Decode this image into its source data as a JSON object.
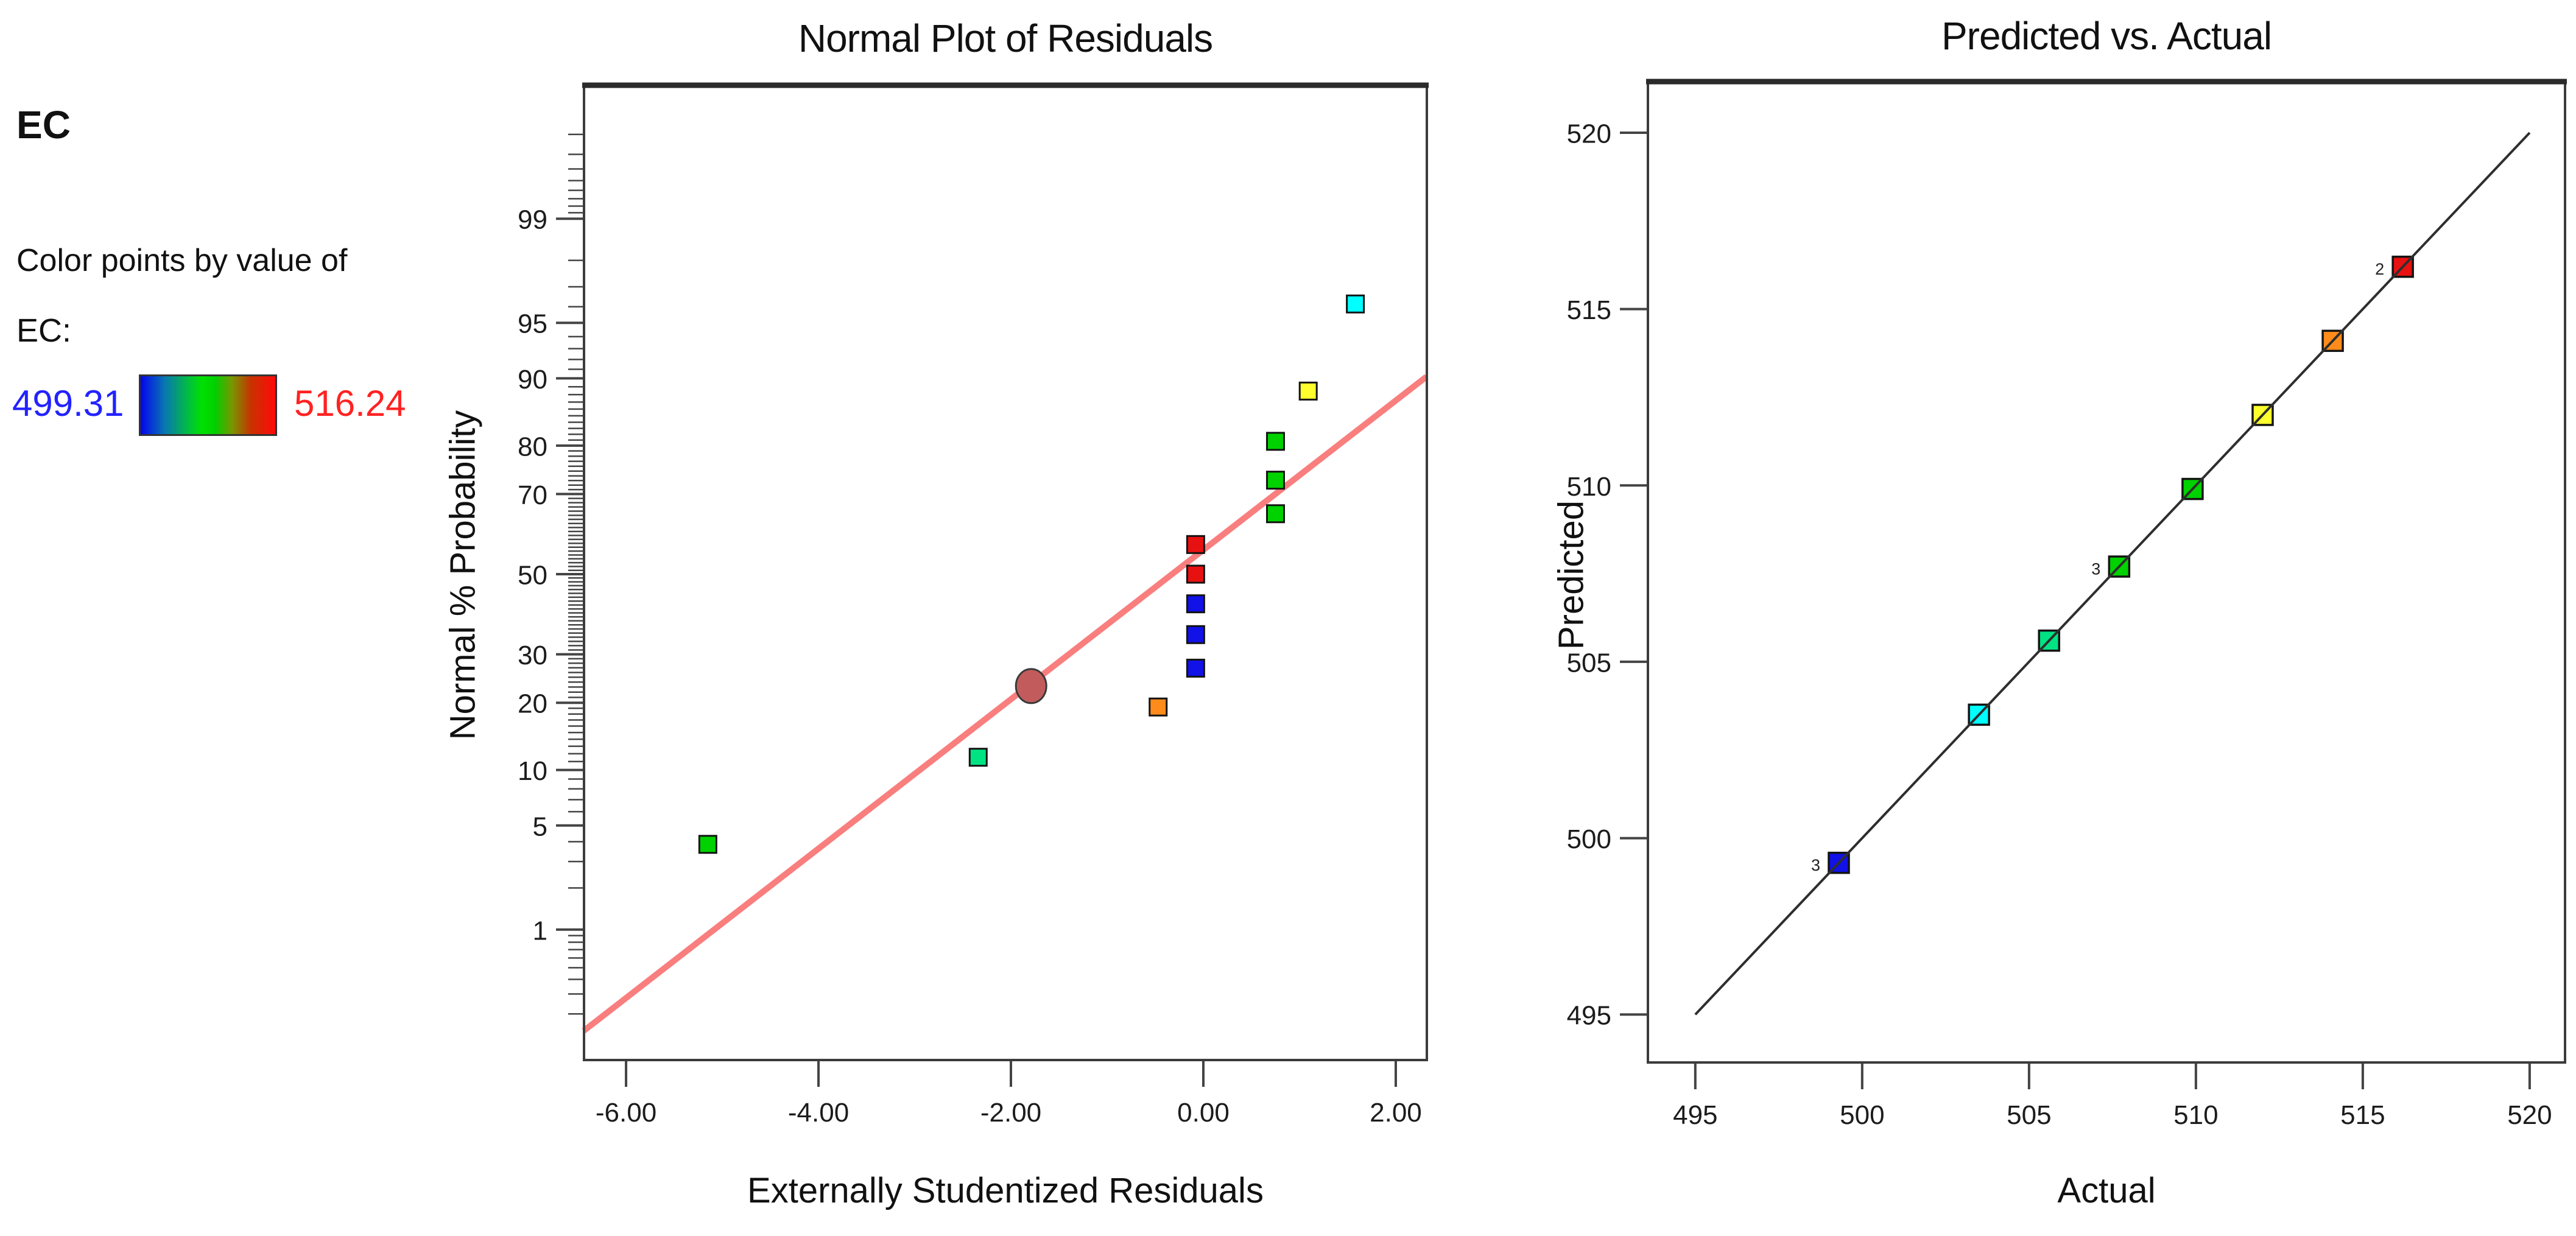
{
  "legend": {
    "title": "EC",
    "caption": "Color points by value of",
    "factor_label": "EC:",
    "min_value": "499.31",
    "max_value": "516.24",
    "min_color": "#2222ff",
    "max_color": "#ff2222",
    "gradient_stops": [
      "#0404f0 0%",
      "#0878b0 18%",
      "#00c830 38%",
      "#00e000 46%",
      "#00d000 55%",
      "#789600 68%",
      "#c83200 82%",
      "#ff0a0a 100%"
    ]
  },
  "chart_data": [
    {
      "type": "scatter",
      "title": "Normal Plot of Residuals",
      "xlabel": "Externally Studentized Residuals",
      "ylabel": "Normal % Probability",
      "y_scale": "normal-probability",
      "xlim": [
        -6.437,
        2.323
      ],
      "ylim_probit": [
        -3.18,
        3.2
      ],
      "x_ticks": [
        -6,
        -4,
        -2,
        0,
        2
      ],
      "x_tick_labels": [
        "-6.00",
        "-4.00",
        "-2.00",
        "0.00",
        "2.00"
      ],
      "y_major_ticks": [
        1,
        5,
        10,
        20,
        30,
        50,
        70,
        80,
        90,
        95,
        99
      ],
      "y_minor_tick_ranges": [
        [
          0.2,
          0.9,
          0.1
        ],
        [
          2,
          4,
          1
        ],
        [
          6,
          9,
          1
        ],
        [
          11,
          19,
          1
        ],
        [
          21,
          29,
          1
        ],
        [
          31,
          49,
          1
        ],
        [
          51,
          69,
          1
        ],
        [
          71,
          79,
          1
        ],
        [
          81,
          89,
          1
        ],
        [
          91,
          94,
          1
        ],
        [
          96,
          98,
          1
        ],
        [
          99.1,
          99.8,
          0.1
        ]
      ],
      "fit_line": {
        "x1": -6.44,
        "percent1": 0.14,
        "x2": 2.32,
        "percent2": 90.2,
        "color": "#f97e7e"
      },
      "highlight_circle": {
        "x": -1.79,
        "percent": 23.2,
        "color": "#c25c5c"
      },
      "points": [
        {
          "x": -5.15,
          "percent": 3.85,
          "color": "#00d200"
        },
        {
          "x": -2.34,
          "percent": 11.54,
          "color": "#00e383"
        },
        {
          "x": -0.47,
          "percent": 19.23,
          "color": "#ff8c1a"
        },
        {
          "x": -0.08,
          "percent": 26.92,
          "color": "#1111e8"
        },
        {
          "x": -0.08,
          "percent": 34.62,
          "color": "#1111e8"
        },
        {
          "x": -0.08,
          "percent": 42.31,
          "color": "#1111e8"
        },
        {
          "x": -0.08,
          "percent": 50.0,
          "color": "#e81111"
        },
        {
          "x": -0.08,
          "percent": 57.69,
          "color": "#e81111"
        },
        {
          "x": 0.75,
          "percent": 65.38,
          "color": "#00d200"
        },
        {
          "x": 0.75,
          "percent": 73.08,
          "color": "#00d200"
        },
        {
          "x": 0.75,
          "percent": 80.77,
          "color": "#00d200"
        },
        {
          "x": 1.09,
          "percent": 88.46,
          "color": "#ffff2e"
        },
        {
          "x": 1.58,
          "percent": 96.15,
          "color": "#00ffff"
        }
      ]
    },
    {
      "type": "scatter",
      "title": "Predicted vs. Actual",
      "xlabel": "Actual",
      "ylabel": "Predicted",
      "xlim": [
        493.58,
        521.06
      ],
      "ylim": [
        493.64,
        521.45
      ],
      "x_ticks": [
        495,
        500,
        505,
        510,
        515,
        520
      ],
      "x_tick_labels": [
        "495",
        "500",
        "505",
        "510",
        "515",
        "520"
      ],
      "y_ticks": [
        495,
        500,
        505,
        510,
        515,
        520
      ],
      "y_tick_labels": [
        "495",
        "500",
        "505",
        "510",
        "515",
        "520"
      ],
      "identity_line": {
        "x1": 495,
        "y1": 495,
        "x2": 520,
        "y2": 520,
        "color": "#2e2e2e"
      },
      "points": [
        {
          "actual": 499.3,
          "predicted": 499.3,
          "color": "#1111e8",
          "count_label": "3"
        },
        {
          "actual": 503.5,
          "predicted": 503.5,
          "color": "#00ffff",
          "count_label": ""
        },
        {
          "actual": 505.6,
          "predicted": 505.6,
          "color": "#00e383",
          "count_label": ""
        },
        {
          "actual": 507.7,
          "predicted": 507.7,
          "color": "#00d200",
          "count_label": "3"
        },
        {
          "actual": 509.9,
          "predicted": 509.9,
          "color": "#00d200",
          "count_label": ""
        },
        {
          "actual": 512.0,
          "predicted": 512.0,
          "color": "#ffff2e",
          "count_label": ""
        },
        {
          "actual": 514.1,
          "predicted": 514.1,
          "color": "#ff8c1a",
          "count_label": ""
        },
        {
          "actual": 516.2,
          "predicted": 516.2,
          "color": "#e81111",
          "count_label": "2"
        }
      ]
    }
  ]
}
